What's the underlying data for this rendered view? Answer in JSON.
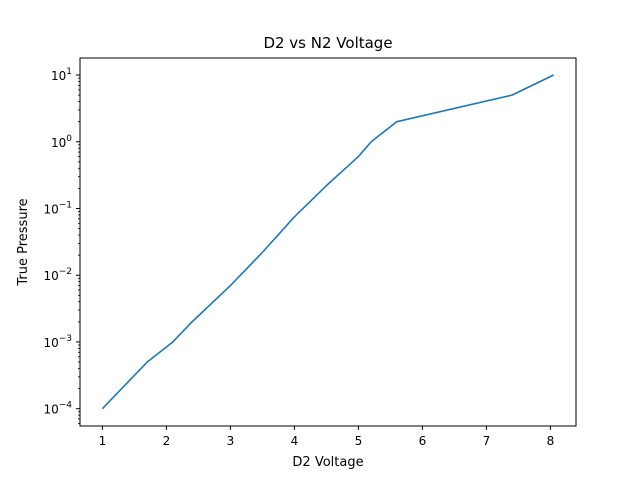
{
  "chart_data": {
    "type": "line",
    "title": "D2 vs N2 Voltage",
    "xlabel": "D2 Voltage",
    "ylabel": "True Pressure",
    "xlim": [
      0.65,
      8.4
    ],
    "ylim": [
      5.5e-05,
      18
    ],
    "yscale": "log",
    "grid": false,
    "x_ticks": [
      1,
      2,
      3,
      4,
      5,
      6,
      7,
      8
    ],
    "x_tick_labels": [
      "1",
      "2",
      "3",
      "4",
      "5",
      "6",
      "7",
      "8"
    ],
    "y_ticks": [
      {
        "value": 0.0001,
        "base": "10",
        "exp": "−4"
      },
      {
        "value": 0.001,
        "base": "10",
        "exp": "−3"
      },
      {
        "value": 0.01,
        "base": "10",
        "exp": "−2"
      },
      {
        "value": 0.1,
        "base": "10",
        "exp": "−1"
      },
      {
        "value": 1,
        "base": "10",
        "exp": "0"
      },
      {
        "value": 10,
        "base": "10",
        "exp": "1"
      }
    ],
    "series": [
      {
        "color": "#1f77b4",
        "x": [
          1.0,
          1.7,
          2.1,
          2.4,
          3.0,
          3.5,
          4.0,
          4.5,
          5.0,
          5.2,
          5.6,
          7.4,
          8.05
        ],
        "y": [
          0.0001,
          0.0005,
          0.001,
          0.002,
          0.007,
          0.022,
          0.075,
          0.22,
          0.6,
          1.0,
          2.0,
          5.0,
          10.0
        ]
      }
    ]
  }
}
